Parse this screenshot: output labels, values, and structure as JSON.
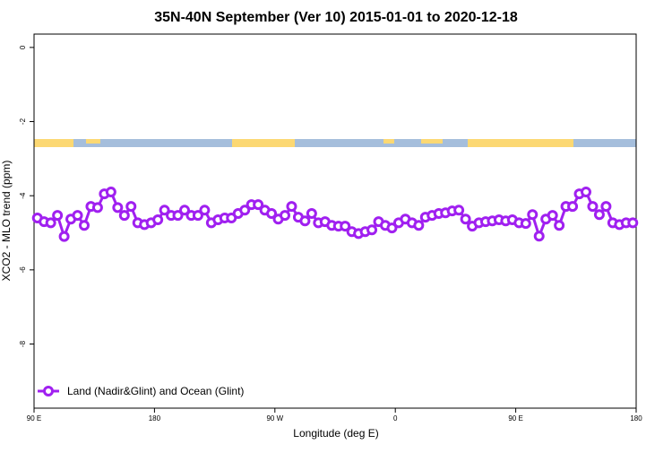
{
  "chart_data": {
    "type": "line",
    "title": "35N-40N September (Ver 10)   2015-01-01 to 2020-12-18",
    "xlabel": "Longitude (deg E)",
    "ylabel": "XCO2 - MLO trend (ppm)",
    "xlim": [
      90,
      540
    ],
    "ylim": [
      -9.73,
      0.36
    ],
    "xticks": [
      {
        "value": 90,
        "label": "90 E"
      },
      180,
      {
        "value": 270,
        "label": "90 W"
      },
      {
        "value": 360,
        "label": "0"
      },
      {
        "value": 450,
        "label": "90 E"
      },
      {
        "value": 540,
        "label": "180"
      }
    ],
    "yticks": [
      0,
      -2,
      -4,
      -6,
      -8
    ],
    "legend": "bottom-left",
    "x": [
      92.5,
      97.5,
      102.5,
      107.5,
      112.5,
      117.5,
      122.5,
      127.5,
      132.5,
      137.5,
      142.5,
      147.5,
      152.5,
      157.5,
      162.5,
      167.5,
      172.5,
      177.5,
      182.5,
      187.5,
      192.5,
      197.5,
      202.5,
      207.5,
      212.5,
      217.5,
      222.5,
      227.5,
      232.5,
      237.5,
      242.5,
      247.5,
      252.5,
      257.5,
      262.5,
      267.5,
      272.5,
      277.5,
      282.5,
      287.5,
      292.5,
      297.5,
      302.5,
      307.5,
      312.5,
      317.5,
      322.5,
      327.5,
      332.5,
      337.5,
      342.5,
      347.5,
      352.5,
      357.5,
      362.5,
      367.5,
      372.5,
      377.5,
      382.5,
      387.5,
      392.5,
      397.5,
      402.5,
      407.5,
      412.5,
      417.5,
      422.5,
      427.5,
      432.5,
      437.5,
      442.5,
      447.5,
      452.5,
      457.5,
      462.5,
      467.5,
      472.5,
      477.5,
      482.5,
      487.5,
      492.5,
      497.5,
      502.5,
      507.5,
      512.5,
      517.5,
      522.5,
      527.5,
      532.5,
      537.5
    ],
    "series": [
      {
        "name": "Land (Nadir&Glint) and Ocean (Glint)",
        "color": "#a020f0",
        "values": [
          -4.6,
          -4.7,
          -4.73,
          -4.53,
          -5.1,
          -4.63,
          -4.53,
          -4.8,
          -4.29,
          -4.32,
          -3.95,
          -3.9,
          -4.32,
          -4.53,
          -4.29,
          -4.73,
          -4.78,
          -4.73,
          -4.65,
          -4.39,
          -4.53,
          -4.53,
          -4.39,
          -4.53,
          -4.53,
          -4.39,
          -4.73,
          -4.65,
          -4.6,
          -4.6,
          -4.48,
          -4.39,
          -4.24,
          -4.24,
          -4.39,
          -4.48,
          -4.63,
          -4.53,
          -4.29,
          -4.58,
          -4.68,
          -4.48,
          -4.73,
          -4.7,
          -4.8,
          -4.82,
          -4.82,
          -4.97,
          -5.02,
          -4.97,
          -4.92,
          -4.7,
          -4.8,
          -4.87,
          -4.73,
          -4.63,
          -4.73,
          -4.8,
          -4.58,
          -4.53,
          -4.48,
          -4.46,
          -4.41,
          -4.39,
          -4.63,
          -4.82,
          -4.73,
          -4.7,
          -4.68,
          -4.65,
          -4.68,
          -4.65,
          -4.73,
          -4.75,
          -4.51,
          -5.09,
          -4.63,
          -4.53,
          -4.8,
          -4.29,
          -4.29,
          -3.95,
          -3.9,
          -4.29,
          -4.51,
          -4.29,
          -4.73,
          -4.78,
          -4.73,
          -4.73
        ]
      }
    ]
  }
}
